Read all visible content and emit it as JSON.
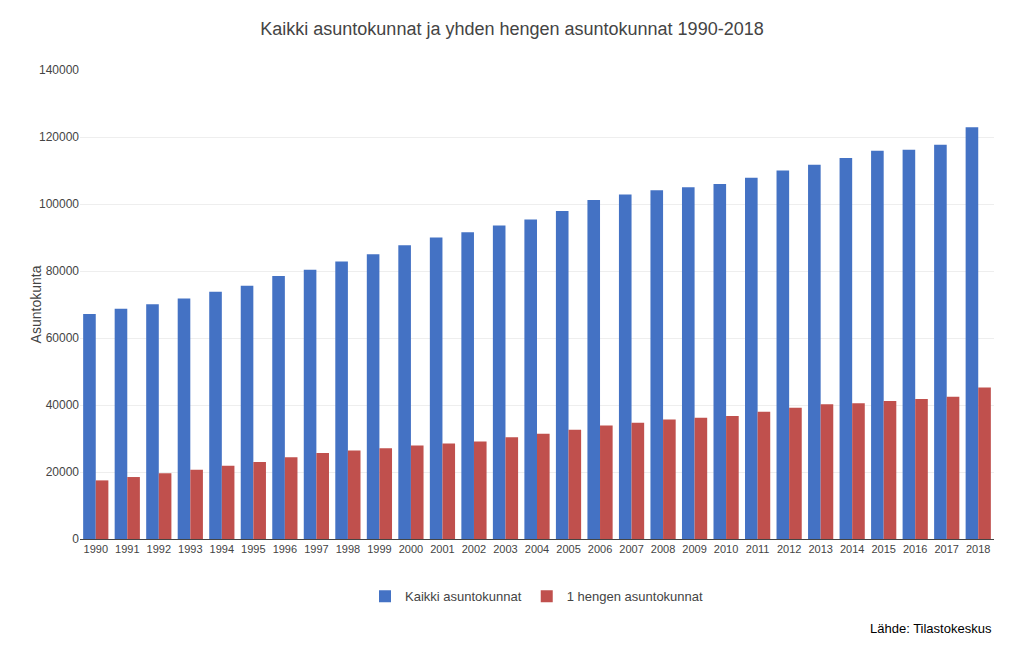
{
  "chart_data": {
    "type": "bar",
    "title": "Kaikki asuntokunnat ja yhden hengen asuntokunnat 1990-2018",
    "ylabel": "Asuntokunta",
    "annotations": [
      "Lähde: Tilastokeskus"
    ],
    "categories": [
      "1990",
      "1991",
      "1992",
      "1993",
      "1994",
      "1995",
      "1996",
      "1997",
      "1998",
      "1999",
      "2000",
      "2001",
      "2002",
      "2003",
      "2004",
      "2005",
      "2006",
      "2007",
      "2008",
      "2009",
      "2010",
      "2011",
      "2012",
      "2013",
      "2014",
      "2015",
      "2016",
      "2017",
      "2018"
    ],
    "series": [
      {
        "name": "Kaikki asuntokunnat",
        "color": "#4472C4",
        "values": [
          67200,
          68700,
          70100,
          71800,
          73800,
          75600,
          78500,
          80400,
          82800,
          85000,
          87700,
          90000,
          91600,
          93600,
          95400,
          97900,
          101200,
          102800,
          104100,
          105000,
          106000,
          107800,
          110000,
          111700,
          113700,
          115900,
          116200,
          117700,
          122910
        ]
      },
      {
        "name": "1 hengen asuntokunnat",
        "color": "#C0504D",
        "values": [
          17500,
          18500,
          19600,
          20700,
          21900,
          23000,
          24400,
          25700,
          26400,
          27100,
          27900,
          28500,
          29100,
          30400,
          31400,
          32600,
          33900,
          34700,
          35700,
          36200,
          36700,
          38000,
          39200,
          40200,
          40500,
          41200,
          41800,
          42500,
          45187
        ]
      }
    ],
    "ylim": [
      0,
      140000
    ],
    "yticks": [
      0,
      20000,
      40000,
      60000,
      80000,
      100000,
      120000,
      140000
    ],
    "grid": true,
    "legend": "bottom"
  }
}
